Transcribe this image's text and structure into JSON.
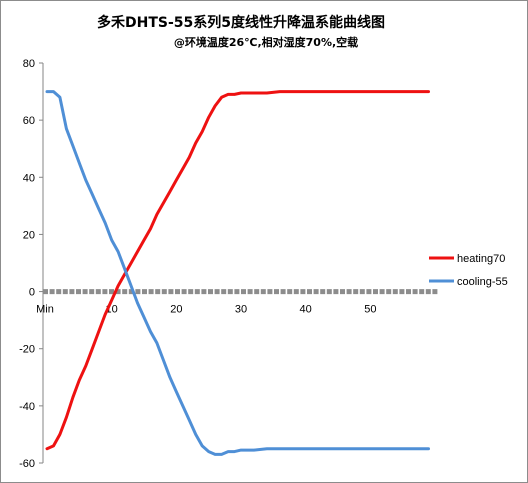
{
  "chart_data": {
    "type": "line",
    "title": "多禾DHTS-55系列5度线性升降温系能曲线图",
    "subtitle": "@环境温度26℃,相对湿度70%,空载",
    "ylim": [
      -60,
      80
    ],
    "yticks": [
      -60,
      -40,
      -20,
      0,
      20,
      40,
      60,
      80
    ],
    "xlim": [
      0,
      60
    ],
    "xtick_values": [
      0,
      10,
      20,
      30,
      40,
      50
    ],
    "xtick_labels": [
      "Min",
      "10",
      "20",
      "30",
      "40",
      "50"
    ],
    "legend_position": "right",
    "grid": false,
    "series": [
      {
        "name": "heating70",
        "color": "#ee1111",
        "x": [
          0,
          1,
          2,
          3,
          4,
          5,
          6,
          7,
          8,
          9,
          10,
          11,
          12,
          13,
          14,
          15,
          16,
          17,
          18,
          19,
          20,
          21,
          22,
          23,
          24,
          25,
          26,
          27,
          28,
          29,
          30,
          32,
          34,
          36,
          38,
          40,
          45,
          50,
          55,
          59
        ],
        "values": [
          -55,
          -54,
          -50,
          -44,
          -37,
          -31,
          -26,
          -20,
          -14,
          -8,
          -3,
          2,
          6,
          10,
          14,
          18,
          22,
          27,
          31,
          35,
          39,
          43,
          47,
          52,
          56,
          61,
          65,
          68,
          69,
          69,
          69.5,
          69.5,
          69.5,
          70,
          70,
          70,
          70,
          70,
          70,
          70
        ]
      },
      {
        "name": "cooling-55",
        "color": "#4f8fd6",
        "x": [
          0,
          1,
          2,
          3,
          4,
          5,
          6,
          7,
          8,
          9,
          10,
          11,
          12,
          13,
          14,
          15,
          16,
          17,
          18,
          19,
          20,
          21,
          22,
          23,
          24,
          25,
          26,
          27,
          28,
          29,
          30,
          32,
          34,
          36,
          38,
          40,
          45,
          50,
          55,
          59
        ],
        "values": [
          70,
          70,
          68,
          57,
          51,
          45,
          39,
          34,
          29,
          24,
          18,
          14,
          8,
          2,
          -4,
          -9,
          -14,
          -18,
          -24,
          -30,
          -35,
          -40,
          -45,
          -50,
          -54,
          -56,
          -57,
          -57,
          -56,
          -56,
          -55.5,
          -55.5,
          -55,
          -55,
          -55,
          -55,
          -55,
          -55,
          -55,
          -55
        ]
      }
    ]
  }
}
